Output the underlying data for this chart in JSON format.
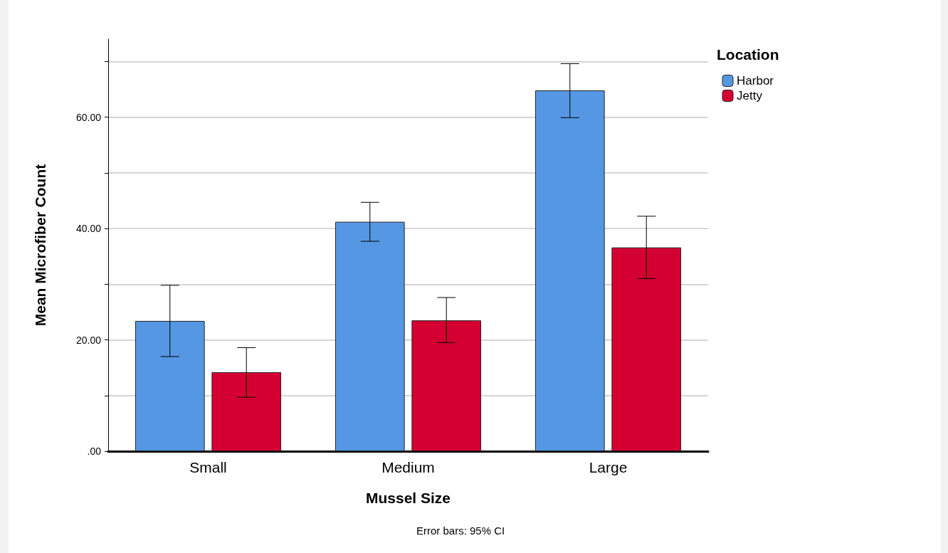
{
  "chart_data": {
    "type": "bar",
    "xlabel": "Mussel Size",
    "ylabel": "Mean Microfiber Count",
    "legend_title": "Location",
    "categories": [
      "Small",
      "Medium",
      "Large"
    ],
    "series": [
      {
        "name": "Harbor",
        "color": "#5597e3",
        "values": [
          23.4,
          41.2,
          64.8
        ],
        "errors": [
          [
            17.0,
            29.8
          ],
          [
            37.7,
            44.7
          ],
          [
            59.9,
            69.6
          ]
        ]
      },
      {
        "name": "Jetty",
        "color": "#d50032",
        "values": [
          14.2,
          23.5,
          36.6
        ],
        "errors": [
          [
            9.7,
            18.6
          ],
          [
            19.5,
            27.6
          ],
          [
            31.0,
            42.2
          ]
        ]
      }
    ],
    "ylim": [
      0,
      74
    ],
    "yticks": [
      {
        "value": 0,
        "label": ".00"
      },
      {
        "value": 10,
        "label": null
      },
      {
        "value": 20,
        "label": "20.00"
      },
      {
        "value": 30,
        "label": null
      },
      {
        "value": 40,
        "label": "40.00"
      },
      {
        "value": 50,
        "label": null
      },
      {
        "value": 60,
        "label": "60.00"
      },
      {
        "value": 70,
        "label": null
      }
    ],
    "grid": "y",
    "legend": "top right",
    "annotations": [
      "Error bars: 95% CI"
    ]
  }
}
